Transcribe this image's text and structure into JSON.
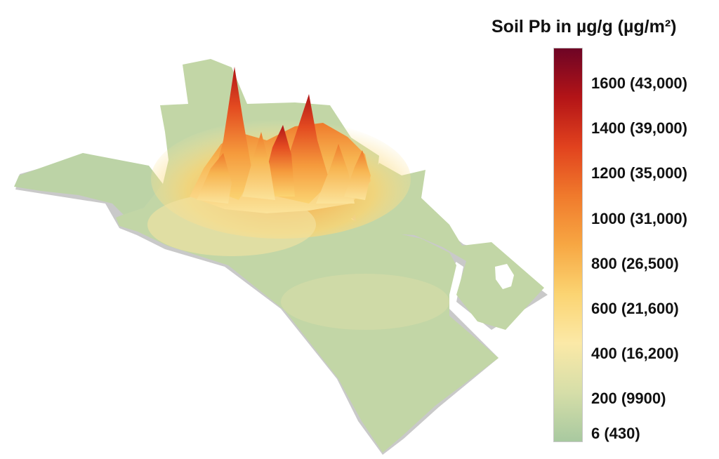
{
  "legend": {
    "title": "Soil Pb in µg/g (µg/m²)",
    "ticks": [
      {
        "label": "1600 (43,000)",
        "value": 1600
      },
      {
        "label": "1400 (39,000)",
        "value": 1400
      },
      {
        "label": "1200 (35,000)",
        "value": 1200
      },
      {
        "label": "1000 (31,000)",
        "value": 1000
      },
      {
        "label": "800 (26,500)",
        "value": 800
      },
      {
        "label": "600 (21,600)",
        "value": 600
      },
      {
        "label": "400 (16,200)",
        "value": 400
      },
      {
        "label": "200 (9900)",
        "value": 200
      },
      {
        "label": "6 (430)",
        "value": 6
      }
    ],
    "colors": [
      "#a8c9a0",
      "#d6dea8",
      "#fbe9a7",
      "#fbd472",
      "#f7a743",
      "#f07a2c",
      "#e1421e",
      "#b31417",
      "#6e0425"
    ]
  }
}
